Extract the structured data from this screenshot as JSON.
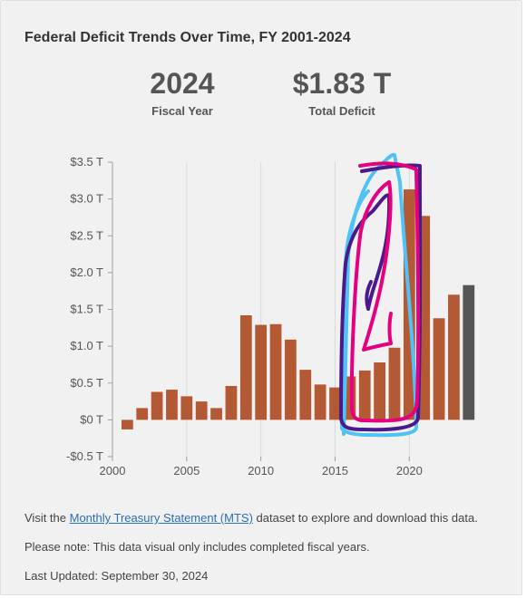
{
  "title": "Federal Deficit Trends Over Time, FY 2001-2024",
  "stats": {
    "year_value": "2024",
    "year_label": "Fiscal Year",
    "deficit_value": "$1.83 T",
    "deficit_label": "Total Deficit"
  },
  "colors": {
    "bar": "#b35a35",
    "highlight_bar": "#555555",
    "grid": "#d9d9d9",
    "axis": "#9e9e9e",
    "annotation_cyan": "#4fc3f7",
    "annotation_purple": "#4a1a8c",
    "annotation_magenta": "#e6007e"
  },
  "chart_data": {
    "type": "bar",
    "title": "",
    "xlabel": "",
    "ylabel": "",
    "x": [
      2001,
      2002,
      2003,
      2004,
      2005,
      2006,
      2007,
      2008,
      2009,
      2010,
      2011,
      2012,
      2013,
      2014,
      2015,
      2016,
      2017,
      2018,
      2019,
      2020,
      2021,
      2022,
      2023,
      2024
    ],
    "values": [
      -0.13,
      0.16,
      0.38,
      0.41,
      0.32,
      0.25,
      0.16,
      0.46,
      1.42,
      1.29,
      1.3,
      1.09,
      0.68,
      0.48,
      0.44,
      0.59,
      0.67,
      0.78,
      0.98,
      3.13,
      2.77,
      1.38,
      1.7,
      1.83
    ],
    "highlight": 2024,
    "xlim": [
      2000,
      2024.5
    ],
    "ylim": [
      -0.5,
      3.5
    ],
    "y_ticks": [
      -0.5,
      0,
      0.5,
      1.0,
      1.5,
      2.0,
      2.5,
      3.0,
      3.5
    ],
    "y_tick_labels": [
      "-$0.5 T",
      "$0 T",
      "$0.5 T",
      "$1.0 T",
      "$1.5 T",
      "$2.0 T",
      "$2.5 T",
      "$3.0 T",
      "$3.5 T"
    ],
    "x_ticks": [
      2000,
      2005,
      2010,
      2015,
      2020
    ],
    "x_tick_labels": [
      "2000",
      "2005",
      "2010",
      "2015",
      "2020"
    ],
    "grid": "vertical"
  },
  "notes": {
    "line1_before": "Visit the ",
    "line1_link": "Monthly Treasury Statement (MTS)",
    "line1_after": " dataset to explore and download this data.",
    "line2": "Please note: This data visual only includes completed fiscal years.",
    "line3": "Last Updated: September 30, 2024"
  }
}
